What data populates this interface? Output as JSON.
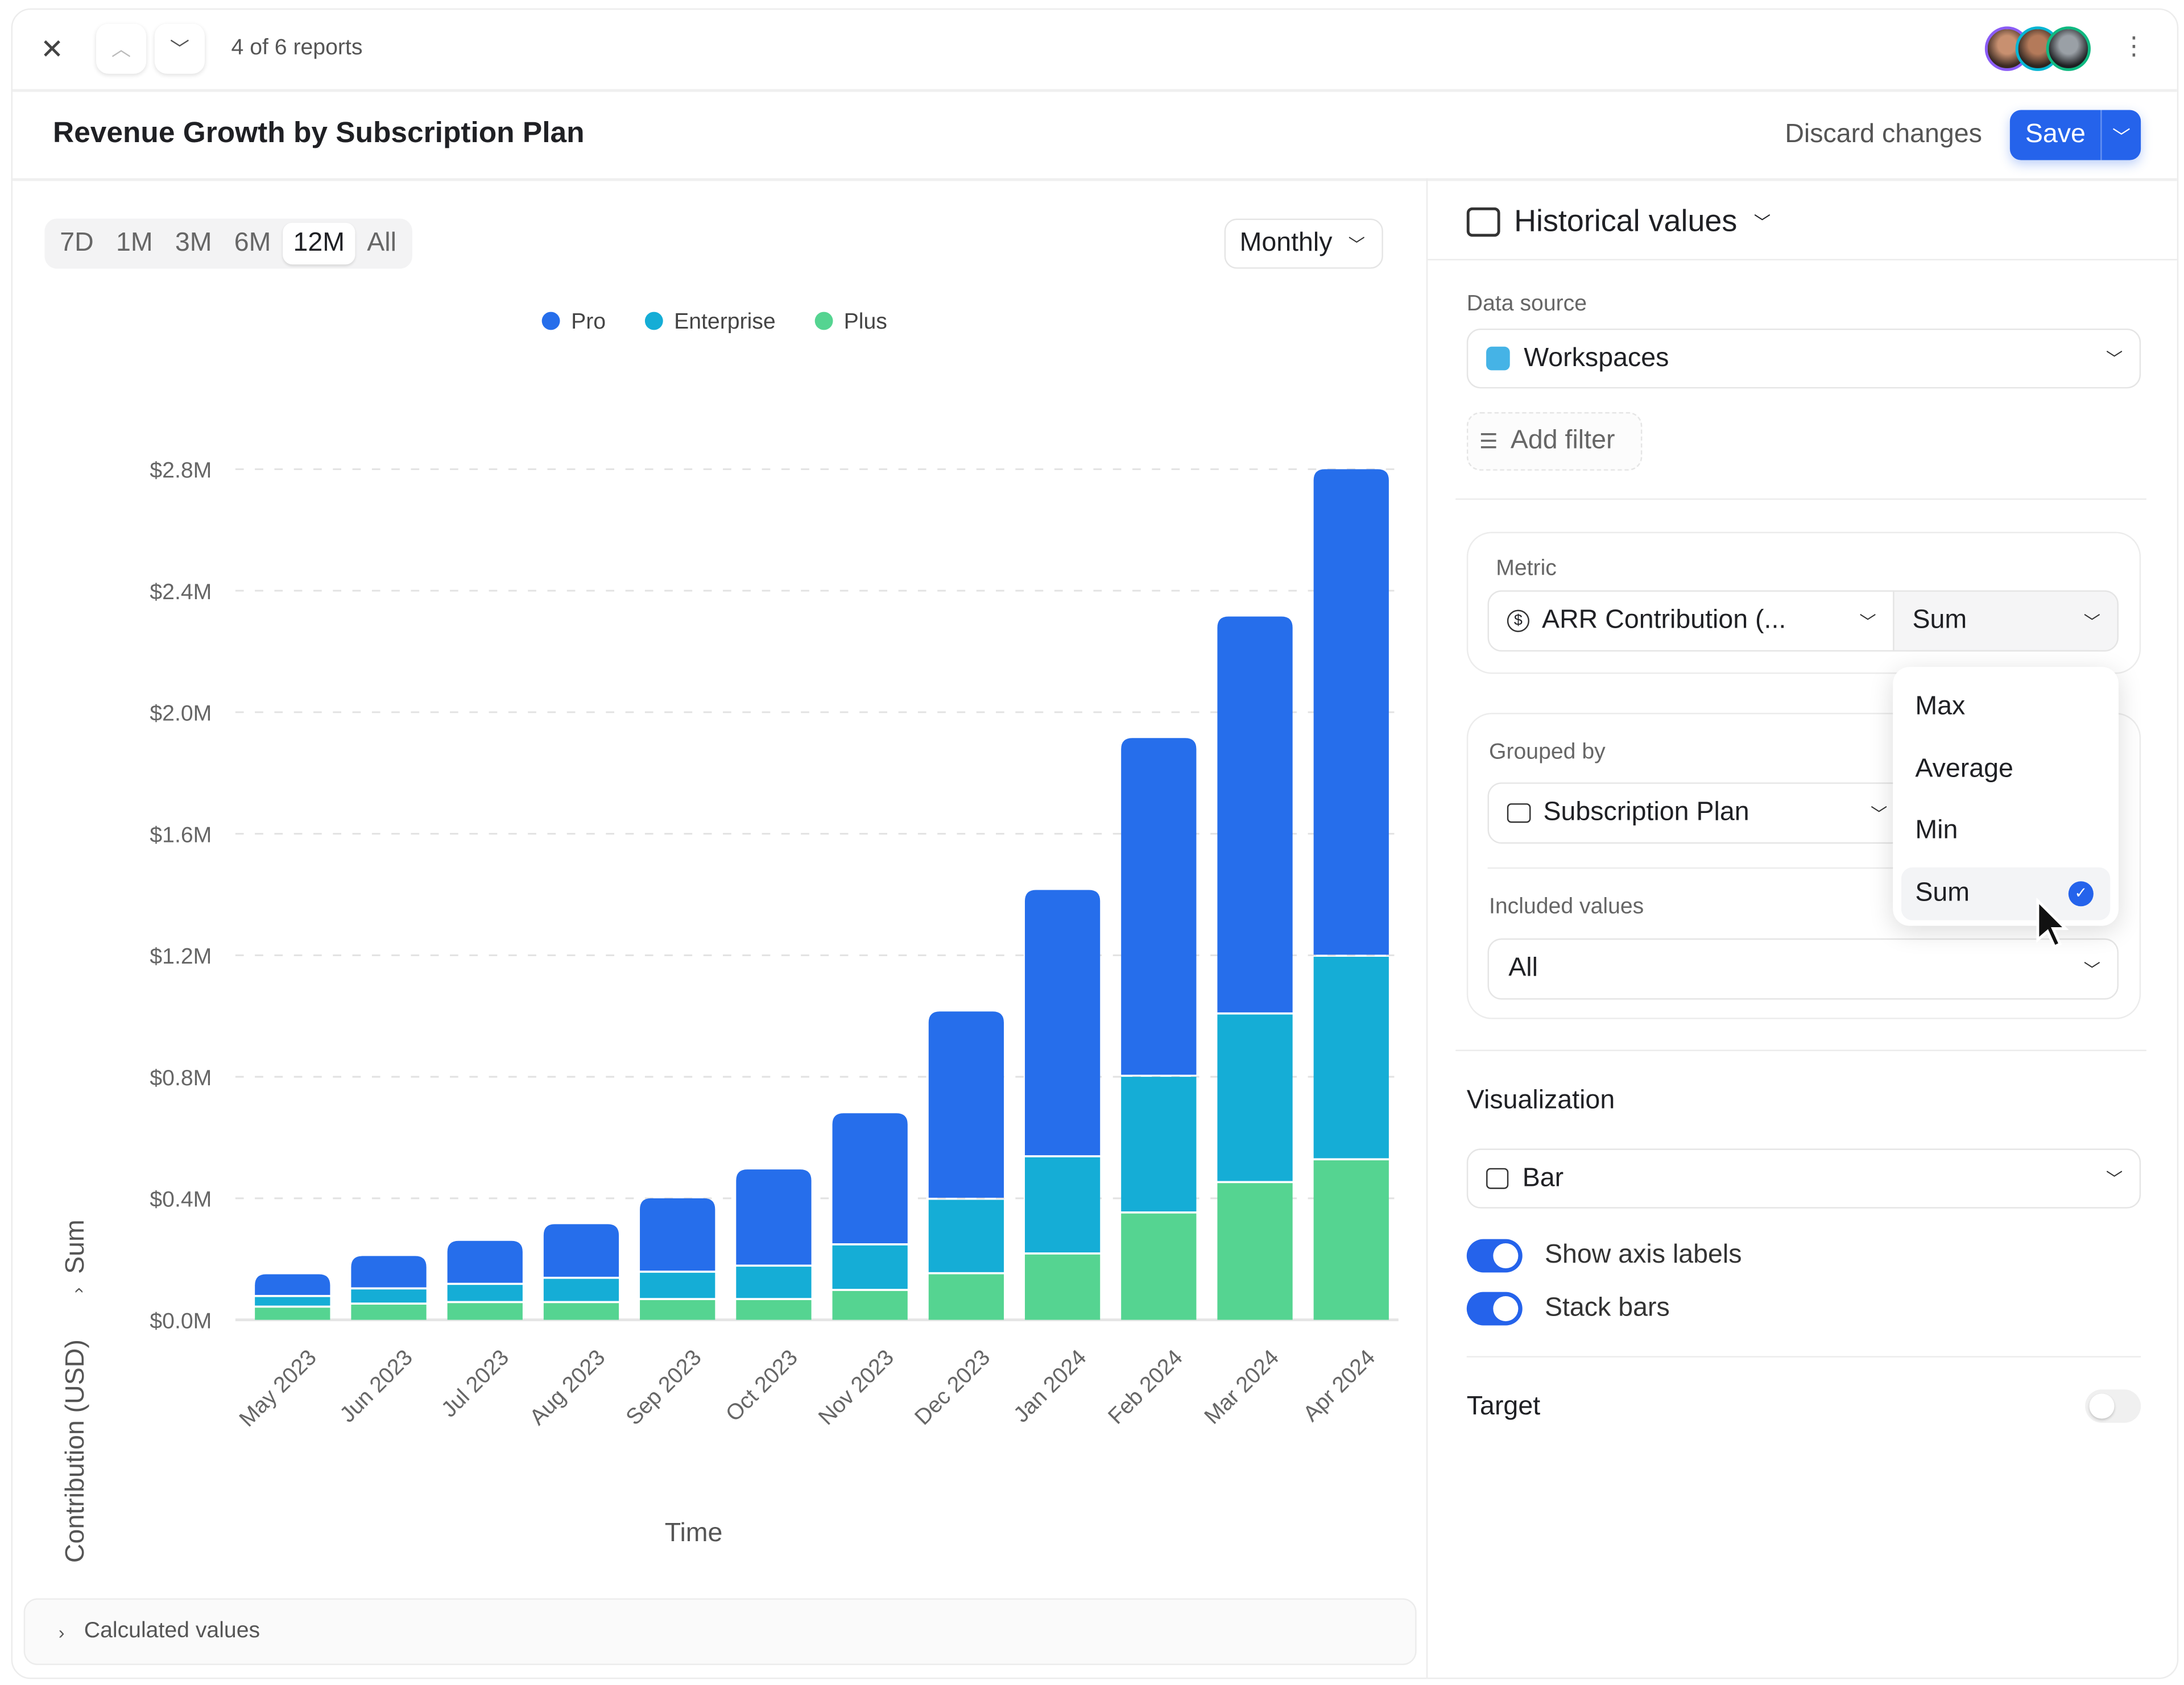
{
  "topbar": {
    "counter": "4 of 6 reports",
    "avatar_rings": [
      "#8b5cf6",
      "#06b6d4",
      "#10b981"
    ]
  },
  "header": {
    "title": "Revenue Growth by Subscription Plan",
    "discard_label": "Discard changes",
    "save_label": "Save"
  },
  "range_tabs": [
    {
      "label": "7D"
    },
    {
      "label": "1M"
    },
    {
      "label": "3M"
    },
    {
      "label": "6M"
    },
    {
      "label": "12M",
      "active": true
    },
    {
      "label": "All"
    }
  ],
  "interval": "Monthly",
  "calculated_values": "Calculated values",
  "colors": {
    "accent": "#2563eb",
    "Pro": "#266EEB",
    "Enterprise": "#15ADD6",
    "Plus": "#55D491"
  },
  "chart_data": {
    "type": "bar",
    "stacked": true,
    "title": "",
    "xlabel": "Time",
    "ylabel": "ARR Contribution (USD)",
    "ylabel_aggregate": "Sum",
    "ylim": [
      0,
      2.8
    ],
    "yticks": [
      "$0.0M",
      "$0.4M",
      "$0.8M",
      "$1.2M",
      "$1.6M",
      "$2.0M",
      "$2.4M",
      "$2.8M"
    ],
    "grid": true,
    "legend": "top",
    "categories": [
      "May 2023",
      "Jun 2023",
      "Jul 2023",
      "Aug 2023",
      "Sep 2023",
      "Oct 2023",
      "Nov 2023",
      "Dec 2023",
      "Jan 2024",
      "Feb 2024",
      "Mar 2024",
      "Apr 2024"
    ],
    "series": [
      {
        "name": "Plus",
        "values": [
          0.04,
          0.05,
          0.055,
          0.055,
          0.065,
          0.065,
          0.095,
          0.15,
          0.215,
          0.35,
          0.45,
          0.525
        ]
      },
      {
        "name": "Enterprise",
        "values": [
          0.035,
          0.05,
          0.06,
          0.08,
          0.09,
          0.11,
          0.15,
          0.245,
          0.32,
          0.45,
          0.555,
          0.67
        ]
      },
      {
        "name": "Pro",
        "values": [
          0.075,
          0.11,
          0.145,
          0.18,
          0.245,
          0.32,
          0.435,
          0.62,
          0.88,
          1.115,
          1.31,
          1.605
        ]
      }
    ],
    "legend_order": [
      "Pro",
      "Enterprise",
      "Plus"
    ]
  },
  "panel": {
    "mode": "Historical values",
    "data_source_label": "Data source",
    "data_source": "Workspaces",
    "add_filter": "Add filter",
    "metric_label": "Metric",
    "metric": "ARR Contribution (...",
    "aggregate": "Sum",
    "aggregate_options": [
      "Max",
      "Average",
      "Min",
      "Sum"
    ],
    "grouped_label": "Grouped by",
    "grouped": "Subscription Plan",
    "included_label": "Included values",
    "included": "All",
    "viz_label": "Visualization",
    "viz": "Bar",
    "show_axis_labels": "Show axis labels",
    "show_axis_labels_on": true,
    "stack_bars": "Stack bars",
    "stack_bars_on": true,
    "target": "Target",
    "target_on": false
  }
}
